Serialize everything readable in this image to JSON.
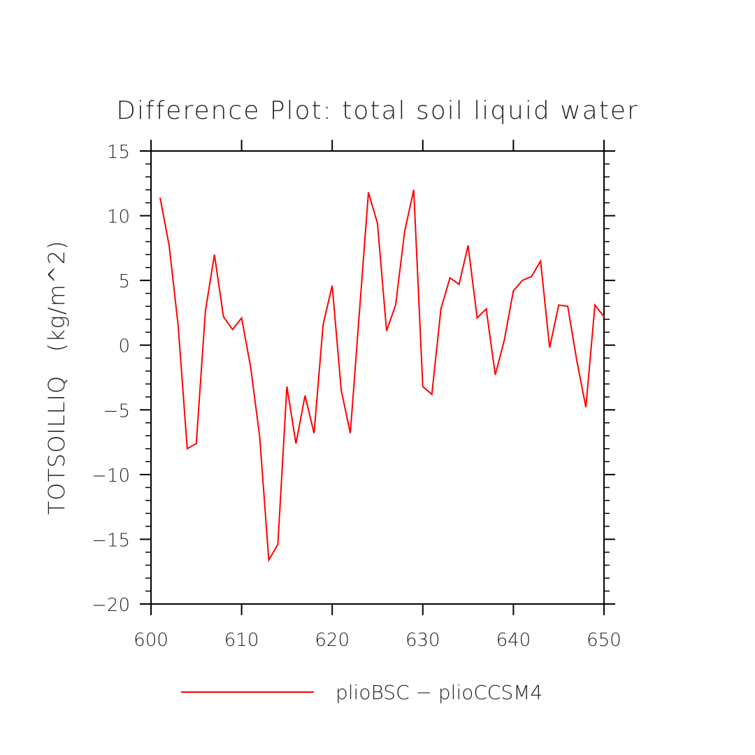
{
  "chart_data": {
    "type": "line",
    "title": "Difference Plot: total soil liquid water",
    "xlabel": "",
    "ylabel": "TOTSOILLIQ   (kg/m^2)",
    "xlim": [
      600,
      650
    ],
    "ylim": [
      -20,
      15
    ],
    "xticks": [
      600,
      610,
      620,
      630,
      640,
      650
    ],
    "yticks": [
      -20,
      -15,
      -10,
      -5,
      0,
      5,
      10,
      15
    ],
    "ytick_labels": [
      "−20",
      "−15",
      "−10",
      "−5",
      "0",
      "5",
      "10",
      "15"
    ],
    "xtick_labels": [
      "600",
      "610",
      "620",
      "630",
      "640",
      "650"
    ],
    "legend_position": "bottom",
    "colors": {
      "series": "#ff0000",
      "axis": "#000000"
    },
    "series": [
      {
        "name": "plioBSC − plioCCSM4",
        "x": [
          601,
          602,
          603,
          604,
          605,
          606,
          607,
          608,
          609,
          610,
          611,
          612,
          613,
          614,
          615,
          616,
          617,
          618,
          619,
          620,
          621,
          622,
          623,
          624,
          625,
          626,
          627,
          628,
          629,
          630,
          631,
          632,
          633,
          634,
          635,
          636,
          637,
          638,
          639,
          640,
          641,
          642,
          643,
          644,
          645,
          646,
          647,
          648,
          649,
          650
        ],
        "values": [
          11.4,
          7.7,
          1.5,
          -8.0,
          -7.6,
          2.6,
          7.0,
          2.2,
          1.2,
          2.1,
          -1.7,
          -7.1,
          -16.6,
          -15.4,
          -3.2,
          -7.6,
          -3.9,
          -6.8,
          1.6,
          4.6,
          -3.5,
          -6.8,
          2.5,
          11.8,
          9.4,
          1.1,
          3.1,
          8.8,
          12.0,
          -3.2,
          -3.8,
          2.8,
          5.2,
          4.7,
          7.7,
          2.1,
          2.8,
          -2.3,
          0.4,
          4.2,
          5.0,
          5.3,
          6.5,
          -0.2,
          3.1,
          3.0,
          -1.2,
          -4.8,
          3.1,
          2.2
        ]
      }
    ]
  }
}
